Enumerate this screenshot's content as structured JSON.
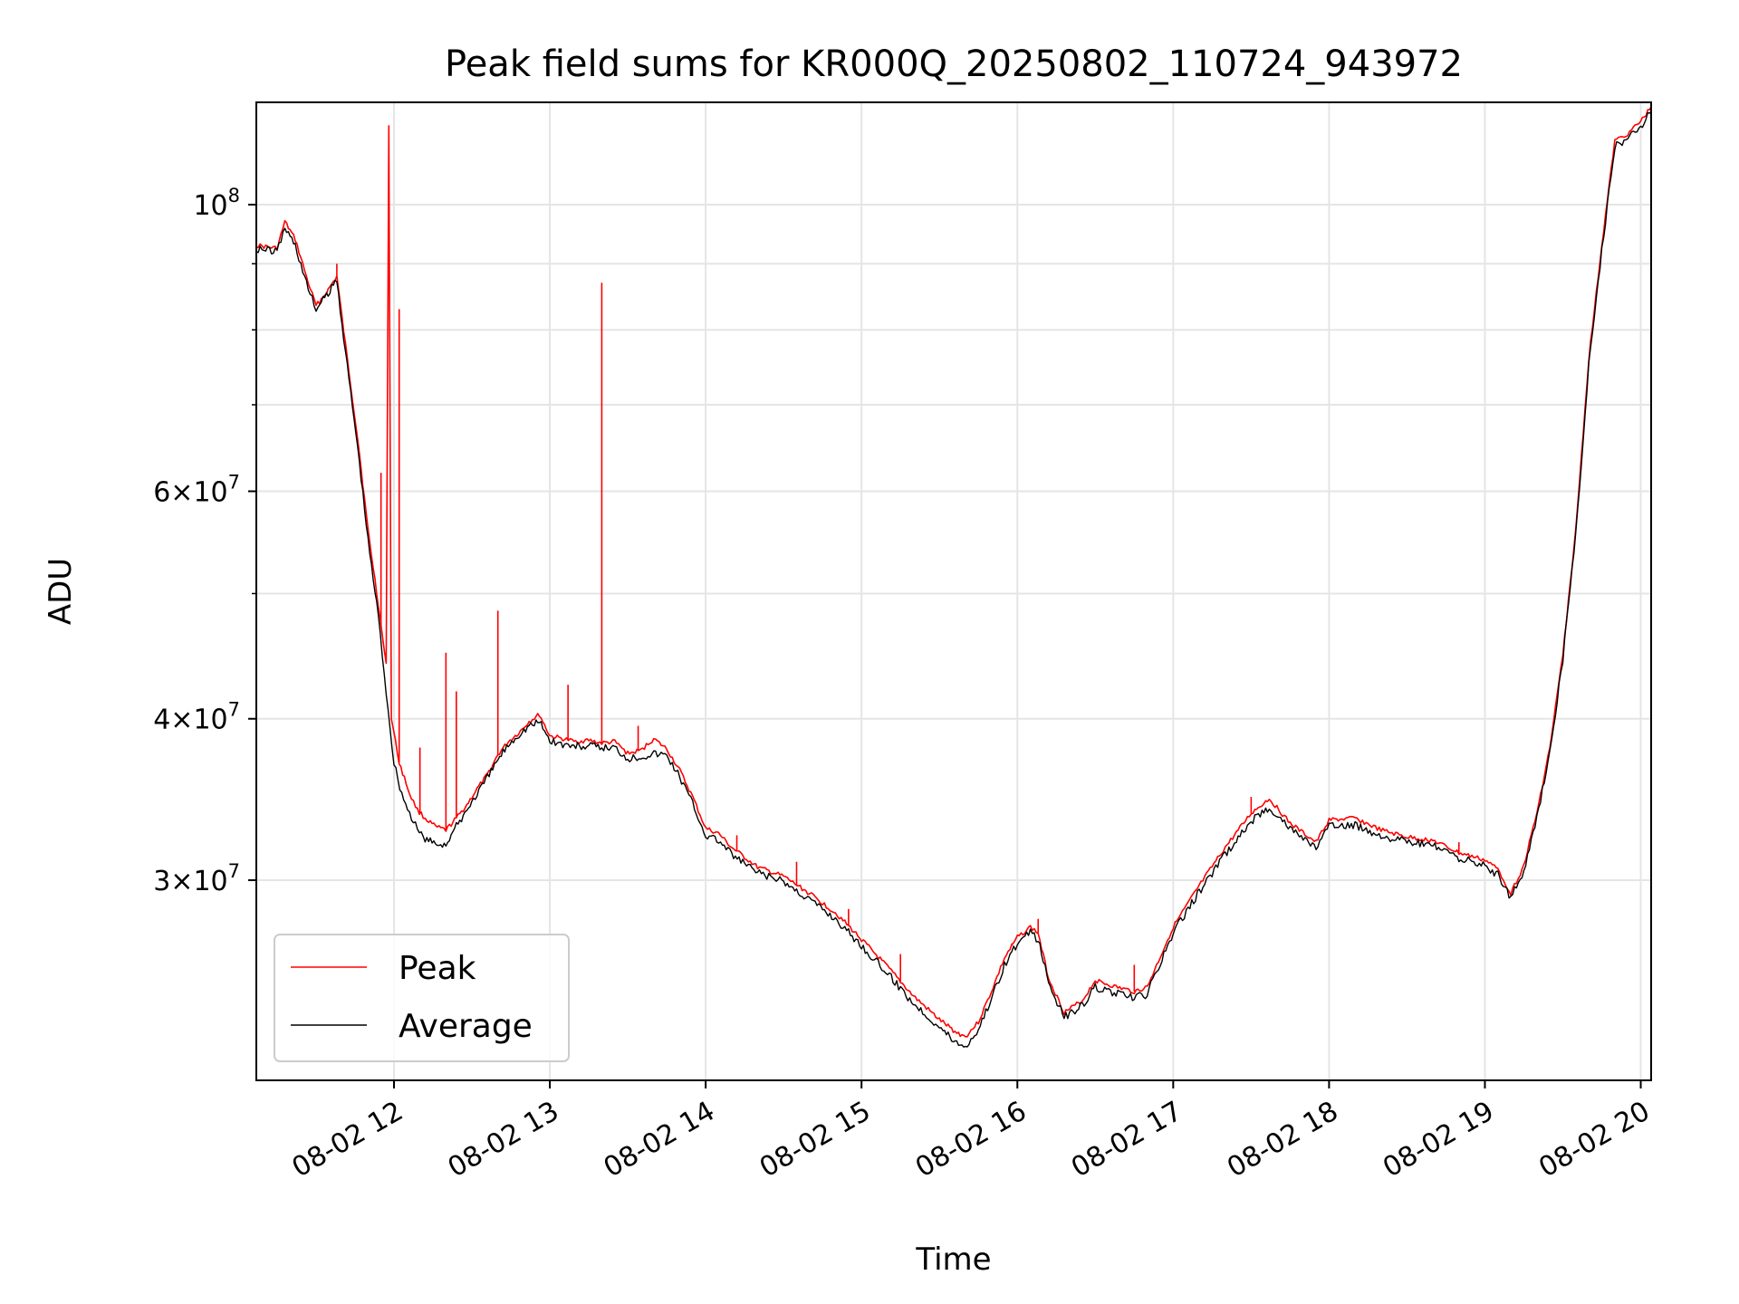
{
  "chart_data": {
    "type": "line",
    "title": "Peak field sums for KR000Q_20250802_110724_943972",
    "xlabel": "Time",
    "ylabel": "ADU",
    "y_scale": "log",
    "xlim": [
      "2025-08-02 11:07",
      "2025-08-02 20:04"
    ],
    "ylim": [
      21000000,
      120000000
    ],
    "grid": true,
    "legend_position": "lower-left",
    "x_ticks": [
      {
        "value": "2025-08-02 12:00",
        "label": "08-02 12"
      },
      {
        "value": "2025-08-02 13:00",
        "label": "08-02 13"
      },
      {
        "value": "2025-08-02 14:00",
        "label": "08-02 14"
      },
      {
        "value": "2025-08-02 15:00",
        "label": "08-02 15"
      },
      {
        "value": "2025-08-02 16:00",
        "label": "08-02 16"
      },
      {
        "value": "2025-08-02 17:00",
        "label": "08-02 17"
      },
      {
        "value": "2025-08-02 18:00",
        "label": "08-02 18"
      },
      {
        "value": "2025-08-02 19:00",
        "label": "08-02 19"
      },
      {
        "value": "2025-08-02 20:00",
        "label": "08-02 20"
      }
    ],
    "y_ticks": [
      {
        "value": 30000000,
        "mantissa": "3",
        "exponent": "7"
      },
      {
        "value": 40000000,
        "mantissa": "4",
        "exponent": "7"
      },
      {
        "value": 60000000,
        "mantissa": "6",
        "exponent": "7"
      },
      {
        "value": 100000000,
        "mantissa": "",
        "exponent": "8"
      }
    ],
    "y_minor_ticks": [
      50000000,
      70000000,
      80000000,
      90000000
    ],
    "series": [
      {
        "name": "Peak",
        "color": "#ff0000",
        "points": [
          [
            "2025-08-02 11:07",
            93000000
          ],
          [
            "2025-08-02 11:15",
            92500000
          ],
          [
            "2025-08-02 11:18",
            97000000
          ],
          [
            "2025-08-02 11:22",
            94000000
          ],
          [
            "2025-08-02 11:27",
            87000000
          ],
          [
            "2025-08-02 11:30",
            83500000
          ],
          [
            "2025-08-02 11:34",
            85500000
          ],
          [
            "2025-08-02 11:38",
            88000000
          ],
          [
            "2025-08-02 11:42",
            76000000
          ],
          [
            "2025-08-02 11:46",
            66000000
          ],
          [
            "2025-08-02 11:50",
            56000000
          ],
          [
            "2025-08-02 11:54",
            49000000
          ],
          [
            "2025-08-02 11:57",
            44000000
          ],
          [
            "2025-08-02 11:58",
            115000000
          ],
          [
            "2025-08-02 11:59",
            40000000
          ],
          [
            "2025-08-02 12:02",
            37000000
          ],
          [
            "2025-08-02 12:06",
            35000000
          ],
          [
            "2025-08-02 12:09",
            34000000
          ],
          [
            "2025-08-02 12:12",
            33500000
          ],
          [
            "2025-08-02 12:16",
            33000000
          ],
          [
            "2025-08-02 12:20",
            32800000
          ],
          [
            "2025-08-02 12:24",
            33500000
          ],
          [
            "2025-08-02 12:28",
            34300000
          ],
          [
            "2025-08-02 12:32",
            35300000
          ],
          [
            "2025-08-02 12:36",
            36200000
          ],
          [
            "2025-08-02 12:40",
            37500000
          ],
          [
            "2025-08-02 12:44",
            38400000
          ],
          [
            "2025-08-02 12:48",
            39000000
          ],
          [
            "2025-08-02 12:52",
            39800000
          ],
          [
            "2025-08-02 12:56",
            40300000
          ],
          [
            "2025-08-02 13:00",
            38800000
          ],
          [
            "2025-08-02 13:05",
            38600000
          ],
          [
            "2025-08-02 13:10",
            38400000
          ],
          [
            "2025-08-02 13:15",
            38500000
          ],
          [
            "2025-08-02 13:20",
            38300000
          ],
          [
            "2025-08-02 13:25",
            38400000
          ],
          [
            "2025-08-02 13:30",
            37600000
          ],
          [
            "2025-08-02 13:35",
            37800000
          ],
          [
            "2025-08-02 13:40",
            38600000
          ],
          [
            "2025-08-02 13:45",
            37900000
          ],
          [
            "2025-08-02 13:50",
            36500000
          ],
          [
            "2025-08-02 13:55",
            34800000
          ],
          [
            "2025-08-02 14:00",
            32900000
          ],
          [
            "2025-08-02 14:05",
            32600000
          ],
          [
            "2025-08-02 14:10",
            31800000
          ],
          [
            "2025-08-02 14:20",
            30700000
          ],
          [
            "2025-08-02 14:30",
            30200000
          ],
          [
            "2025-08-02 14:40",
            29300000
          ],
          [
            "2025-08-02 14:50",
            28300000
          ],
          [
            "2025-08-02 15:00",
            27000000
          ],
          [
            "2025-08-02 15:10",
            25700000
          ],
          [
            "2025-08-02 15:20",
            24400000
          ],
          [
            "2025-08-02 15:30",
            23400000
          ],
          [
            "2025-08-02 15:36",
            22900000
          ],
          [
            "2025-08-02 15:40",
            22700000
          ],
          [
            "2025-08-02 15:45",
            23300000
          ],
          [
            "2025-08-02 15:50",
            24600000
          ],
          [
            "2025-08-02 15:55",
            26100000
          ],
          [
            "2025-08-02 16:00",
            27100000
          ],
          [
            "2025-08-02 16:05",
            27600000
          ],
          [
            "2025-08-02 16:08",
            27300000
          ],
          [
            "2025-08-02 16:12",
            25200000
          ],
          [
            "2025-08-02 16:18",
            23700000
          ],
          [
            "2025-08-02 16:25",
            24200000
          ],
          [
            "2025-08-02 16:30",
            25100000
          ],
          [
            "2025-08-02 16:38",
            24800000
          ],
          [
            "2025-08-02 16:45",
            24600000
          ],
          [
            "2025-08-02 16:50",
            24800000
          ],
          [
            "2025-08-02 17:00",
            27600000
          ],
          [
            "2025-08-02 17:10",
            29700000
          ],
          [
            "2025-08-02 17:20",
            31800000
          ],
          [
            "2025-08-02 17:30",
            33800000
          ],
          [
            "2025-08-02 17:37",
            34700000
          ],
          [
            "2025-08-02 17:45",
            33200000
          ],
          [
            "2025-08-02 17:55",
            32100000
          ],
          [
            "2025-08-02 18:00",
            33400000
          ],
          [
            "2025-08-02 18:10",
            33500000
          ],
          [
            "2025-08-02 18:20",
            32800000
          ],
          [
            "2025-08-02 18:30",
            32400000
          ],
          [
            "2025-08-02 18:40",
            32200000
          ],
          [
            "2025-08-02 18:50",
            31500000
          ],
          [
            "2025-08-02 19:00",
            31100000
          ],
          [
            "2025-08-02 19:05",
            30600000
          ],
          [
            "2025-08-02 19:10",
            29300000
          ],
          [
            "2025-08-02 19:15",
            30800000
          ],
          [
            "2025-08-02 19:20",
            33800000
          ],
          [
            "2025-08-02 19:25",
            38000000
          ],
          [
            "2025-08-02 19:30",
            44800000
          ],
          [
            "2025-08-02 19:35",
            56000000
          ],
          [
            "2025-08-02 19:40",
            76000000
          ],
          [
            "2025-08-02 19:45",
            93000000
          ],
          [
            "2025-08-02 19:50",
            112000000
          ],
          [
            "2025-08-02 19:55",
            113500000
          ],
          [
            "2025-08-02 20:00",
            116000000
          ],
          [
            "2025-08-02 20:04",
            119000000
          ]
        ],
        "spikes": [
          [
            "2025-08-02 11:38",
            90000000
          ],
          [
            "2025-08-02 11:55",
            62000000
          ],
          [
            "2025-08-02 12:02",
            83000000
          ],
          [
            "2025-08-02 12:10",
            38000000
          ],
          [
            "2025-08-02 12:20",
            45000000
          ],
          [
            "2025-08-02 12:24",
            42000000
          ],
          [
            "2025-08-02 12:40",
            48500000
          ],
          [
            "2025-08-02 13:07",
            42500000
          ],
          [
            "2025-08-02 13:20",
            87000000
          ],
          [
            "2025-08-02 13:34",
            39500000
          ],
          [
            "2025-08-02 14:12",
            32500000
          ],
          [
            "2025-08-02 14:35",
            31000000
          ],
          [
            "2025-08-02 14:55",
            28500000
          ],
          [
            "2025-08-02 15:15",
            26300000
          ],
          [
            "2025-08-02 15:58",
            26800000
          ],
          [
            "2025-08-02 16:08",
            28000000
          ],
          [
            "2025-08-02 16:45",
            25800000
          ],
          [
            "2025-08-02 17:30",
            34800000
          ],
          [
            "2025-08-02 18:50",
            32100000
          ]
        ]
      },
      {
        "name": "Average",
        "color": "#000000",
        "points": [
          [
            "2025-08-02 11:07",
            92500000
          ],
          [
            "2025-08-02 11:15",
            92000000
          ],
          [
            "2025-08-02 11:18",
            96000000
          ],
          [
            "2025-08-02 11:22",
            93000000
          ],
          [
            "2025-08-02 11:27",
            86000000
          ],
          [
            "2025-08-02 11:30",
            83000000
          ],
          [
            "2025-08-02 11:34",
            85000000
          ],
          [
            "2025-08-02 11:38",
            87500000
          ],
          [
            "2025-08-02 11:42",
            75000000
          ],
          [
            "2025-08-02 11:46",
            65000000
          ],
          [
            "2025-08-02 11:50",
            55000000
          ],
          [
            "2025-08-02 11:54",
            48000000
          ],
          [
            "2025-08-02 11:57",
            42000000
          ],
          [
            "2025-08-02 12:00",
            37000000
          ],
          [
            "2025-08-02 12:03",
            35000000
          ],
          [
            "2025-08-02 12:06",
            33800000
          ],
          [
            "2025-08-02 12:09",
            32800000
          ],
          [
            "2025-08-02 12:12",
            32300000
          ],
          [
            "2025-08-02 12:16",
            32000000
          ],
          [
            "2025-08-02 12:20",
            32000000
          ],
          [
            "2025-08-02 12:24",
            33000000
          ],
          [
            "2025-08-02 12:28",
            34000000
          ],
          [
            "2025-08-02 12:32",
            35000000
          ],
          [
            "2025-08-02 12:36",
            36000000
          ],
          [
            "2025-08-02 12:40",
            37200000
          ],
          [
            "2025-08-02 12:44",
            38200000
          ],
          [
            "2025-08-02 12:48",
            38900000
          ],
          [
            "2025-08-02 12:52",
            39500000
          ],
          [
            "2025-08-02 12:56",
            39800000
          ],
          [
            "2025-08-02 13:00",
            38500000
          ],
          [
            "2025-08-02 13:05",
            38200000
          ],
          [
            "2025-08-02 13:10",
            38100000
          ],
          [
            "2025-08-02 13:15",
            38100000
          ],
          [
            "2025-08-02 13:20",
            38000000
          ],
          [
            "2025-08-02 13:25",
            38000000
          ],
          [
            "2025-08-02 13:30",
            37300000
          ],
          [
            "2025-08-02 13:35",
            37400000
          ],
          [
            "2025-08-02 13:40",
            37600000
          ],
          [
            "2025-08-02 13:45",
            37500000
          ],
          [
            "2025-08-02 13:50",
            36100000
          ],
          [
            "2025-08-02 13:55",
            34400000
          ],
          [
            "2025-08-02 14:00",
            32500000
          ],
          [
            "2025-08-02 14:05",
            32200000
          ],
          [
            "2025-08-02 14:10",
            31400000
          ],
          [
            "2025-08-02 14:20",
            30400000
          ],
          [
            "2025-08-02 14:30",
            29900000
          ],
          [
            "2025-08-02 14:40",
            29000000
          ],
          [
            "2025-08-02 14:50",
            28000000
          ],
          [
            "2025-08-02 15:00",
            26700000
          ],
          [
            "2025-08-02 15:10",
            25400000
          ],
          [
            "2025-08-02 15:20",
            24100000
          ],
          [
            "2025-08-02 15:30",
            23100000
          ],
          [
            "2025-08-02 15:36",
            22500000
          ],
          [
            "2025-08-02 15:40",
            22300000
          ],
          [
            "2025-08-02 15:45",
            23000000
          ],
          [
            "2025-08-02 15:50",
            24300000
          ],
          [
            "2025-08-02 15:55",
            25800000
          ],
          [
            "2025-08-02 16:00",
            26800000
          ],
          [
            "2025-08-02 16:05",
            27300000
          ],
          [
            "2025-08-02 16:08",
            27000000
          ],
          [
            "2025-08-02 16:12",
            25000000
          ],
          [
            "2025-08-02 16:18",
            23500000
          ],
          [
            "2025-08-02 16:25",
            24000000
          ],
          [
            "2025-08-02 16:30",
            24800000
          ],
          [
            "2025-08-02 16:38",
            24500000
          ],
          [
            "2025-08-02 16:45",
            24300000
          ],
          [
            "2025-08-02 16:50",
            24500000
          ],
          [
            "2025-08-02 17:00",
            27300000
          ],
          [
            "2025-08-02 17:10",
            29400000
          ],
          [
            "2025-08-02 17:20",
            31400000
          ],
          [
            "2025-08-02 17:30",
            33300000
          ],
          [
            "2025-08-02 17:37",
            34200000
          ],
          [
            "2025-08-02 17:45",
            32900000
          ],
          [
            "2025-08-02 17:55",
            31800000
          ],
          [
            "2025-08-02 18:00",
            33000000
          ],
          [
            "2025-08-02 18:10",
            33100000
          ],
          [
            "2025-08-02 18:20",
            32500000
          ],
          [
            "2025-08-02 18:30",
            32100000
          ],
          [
            "2025-08-02 18:40",
            31900000
          ],
          [
            "2025-08-02 18:50",
            31200000
          ],
          [
            "2025-08-02 19:00",
            30800000
          ],
          [
            "2025-08-02 19:05",
            30300000
          ],
          [
            "2025-08-02 19:10",
            29100000
          ],
          [
            "2025-08-02 19:15",
            30500000
          ],
          [
            "2025-08-02 19:20",
            33500000
          ],
          [
            "2025-08-02 19:25",
            37700000
          ],
          [
            "2025-08-02 19:30",
            44500000
          ],
          [
            "2025-08-02 19:35",
            55500000
          ],
          [
            "2025-08-02 19:40",
            75000000
          ],
          [
            "2025-08-02 19:45",
            92000000
          ],
          [
            "2025-08-02 19:50",
            111000000
          ],
          [
            "2025-08-02 19:55",
            112500000
          ],
          [
            "2025-08-02 20:00",
            115000000
          ],
          [
            "2025-08-02 20:04",
            118000000
          ]
        ]
      }
    ]
  }
}
